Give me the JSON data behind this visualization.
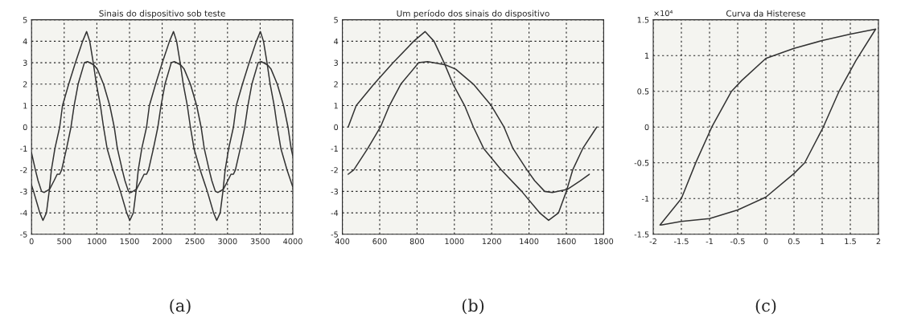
{
  "chart_data": [
    {
      "type": "line",
      "title": "Sinais do dispositivo sob teste",
      "xlim": [
        0,
        4000
      ],
      "ylim": [
        -5,
        5
      ],
      "xticks": [
        0,
        500,
        1000,
        1500,
        2000,
        2500,
        3000,
        3500,
        4000
      ],
      "yticks": [
        -5,
        -4,
        -3,
        -2,
        -1,
        0,
        1,
        2,
        3,
        4,
        5
      ],
      "grid": true,
      "annotations": [
        "(a)"
      ],
      "series": [
        {
          "color": "#333333",
          "x": [
            0,
            31,
            127,
            175,
            228,
            270,
            304,
            358,
            431,
            474,
            569,
            672,
            782,
            843,
            891,
            945,
            993,
            1055,
            1102,
            1157,
            1252,
            1361,
            1457,
            1505,
            1558,
            1600,
            1634,
            1688,
            1761,
            1804,
            1899,
            2002,
            2112,
            2173,
            2221,
            2275,
            2323,
            2385,
            2432,
            2487,
            2582,
            2691,
            2787,
            2835,
            2888,
            2930,
            2964,
            3018,
            3091,
            3134,
            3229,
            3332,
            3442,
            3503,
            3551,
            3605,
            3653,
            3715,
            3762,
            3817,
            3912,
            4000
          ],
          "values": [
            -2.7,
            -3,
            -4,
            -4.35,
            -4,
            -3,
            -2,
            -1,
            0,
            1,
            2,
            3,
            4,
            4.45,
            4,
            3,
            2,
            1,
            0,
            -1,
            -2,
            -3,
            -4,
            -4.35,
            -4,
            -3,
            -2,
            -1,
            0,
            1,
            2,
            3,
            4,
            4.45,
            4,
            3,
            2,
            1,
            0,
            -1,
            -2,
            -3,
            -4,
            -4.35,
            -4,
            -3,
            -2,
            -1,
            0,
            1,
            2,
            3,
            4,
            4.45,
            4,
            3,
            2,
            1,
            0,
            -1,
            -2,
            -2.8
          ]
        },
        {
          "color": "#333333",
          "x": [
            0,
            59,
            100,
            154,
            195,
            277,
            345,
            393,
            431,
            461,
            536,
            604,
            652,
            713,
            809,
            857,
            952,
            1007,
            1102,
            1198,
            1266,
            1314,
            1389,
            1430,
            1484,
            1525,
            1607,
            1675,
            1723,
            1761,
            1791,
            1866,
            1934,
            1982,
            2043,
            2139,
            2187,
            2282,
            2337,
            2432,
            2528,
            2596,
            2644,
            2719,
            2760,
            2814,
            2855,
            2937,
            3005,
            3053,
            3091,
            3121,
            3196,
            3264,
            3312,
            3373,
            3469,
            3517,
            3612,
            3667,
            3762,
            3858,
            3926,
            3974,
            4000
          ],
          "values": [
            -1.2,
            -2,
            -2.5,
            -3,
            -3.05,
            -2.9,
            -2.5,
            -2.2,
            -2.2,
            -2,
            -1,
            0,
            1,
            2,
            3,
            3.05,
            2.9,
            2.7,
            2,
            1,
            0,
            -1,
            -2,
            -2.5,
            -3,
            -3.05,
            -2.9,
            -2.5,
            -2.2,
            -2.2,
            -2,
            -1,
            0,
            1,
            2,
            3,
            3.05,
            2.9,
            2.7,
            2,
            1,
            0,
            -1,
            -2,
            -2.5,
            -3,
            -3.05,
            -2.9,
            -2.5,
            -2.2,
            -2.2,
            -2,
            -1,
            0,
            1,
            2,
            3,
            3.05,
            2.9,
            2.7,
            2,
            1,
            0,
            -1,
            -1.35
          ]
        }
      ]
    },
    {
      "type": "line",
      "title": "Um período dos sinais do dispositivo",
      "xlim": [
        400,
        1800
      ],
      "ylim": [
        -5,
        5
      ],
      "xticks": [
        400,
        600,
        800,
        1000,
        1200,
        1400,
        1600,
        1800
      ],
      "yticks": [
        -5,
        -4,
        -3,
        -2,
        -1,
        0,
        1,
        2,
        3,
        4,
        5
      ],
      "grid": true,
      "annotations": [
        "(b)"
      ],
      "series": [
        {
          "color": "#333333",
          "x": [
            431,
            474,
            569,
            672,
            782,
            843,
            891,
            945,
            993,
            1055,
            1102,
            1157,
            1252,
            1361,
            1457,
            1505,
            1558,
            1600,
            1634,
            1688,
            1763
          ],
          "values": [
            0,
            1,
            2,
            3,
            4,
            4.45,
            4,
            3,
            2,
            1,
            0,
            -1,
            -2,
            -3,
            -4,
            -4.35,
            -4,
            -3,
            -2,
            -1,
            0
          ]
        },
        {
          "color": "#333333",
          "x": [
            431,
            461,
            536,
            604,
            652,
            713,
            809,
            857,
            952,
            1007,
            1102,
            1198,
            1266,
            1314,
            1389,
            1430,
            1484,
            1525,
            1607,
            1675,
            1723
          ],
          "values": [
            -2.2,
            -2,
            -1,
            0,
            1,
            2,
            3,
            3.05,
            2.9,
            2.7,
            2,
            1,
            0,
            -1,
            -2,
            -2.5,
            -3,
            -3.05,
            -2.9,
            -2.5,
            -2.2
          ]
        }
      ]
    },
    {
      "type": "line",
      "title": "Curva da Histerese",
      "xlim": [
        -2,
        2
      ],
      "ylim": [
        -1.5,
        1.5
      ],
      "xticks": [
        -2,
        -1.5,
        -1,
        -0.5,
        0,
        0.5,
        1,
        1.5,
        2
      ],
      "yticks": [
        -1.5,
        -1,
        -0.5,
        0,
        0.5,
        1,
        1.5
      ],
      "grid": true,
      "annotations": [
        "×10⁴",
        "(c)"
      ],
      "series": [
        {
          "color": "#333333",
          "x": [
            -1.88,
            -1.5,
            -1.24,
            -0.96,
            -0.61,
            -0.43,
            0,
            0.5,
            1.0,
            1.5,
            1.95,
            1.6,
            1.3,
            1.02,
            0.69,
            0.5,
            0,
            -0.5,
            -1.0,
            -1.5,
            -1.86
          ],
          "values": [
            -1.37,
            -1.0,
            -0.49,
            0,
            0.5,
            0.65,
            0.96,
            1.1,
            1.21,
            1.3,
            1.37,
            0.93,
            0.5,
            0,
            -0.5,
            -0.65,
            -0.98,
            -1.16,
            -1.28,
            -1.32,
            -1.37
          ]
        }
      ]
    }
  ]
}
